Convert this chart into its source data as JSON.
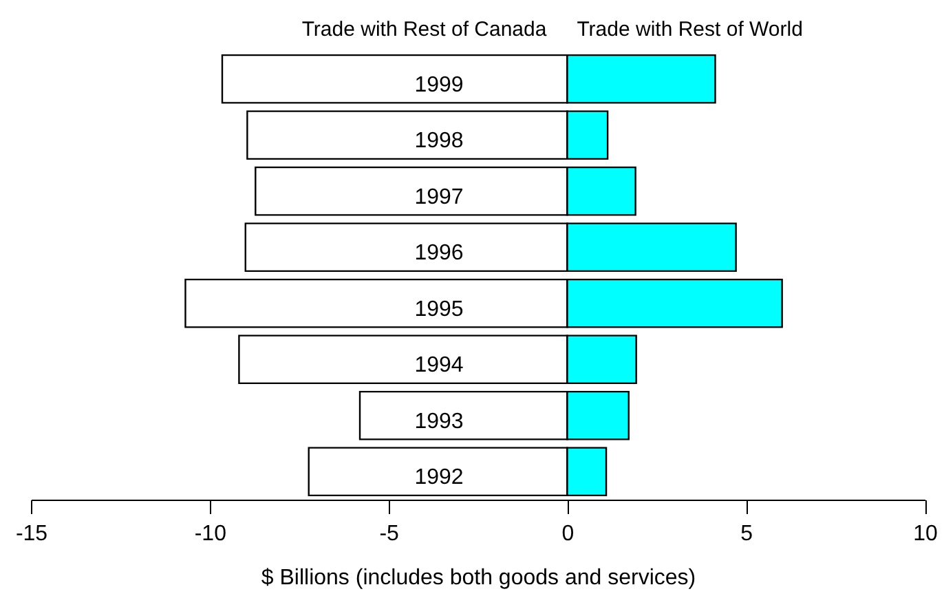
{
  "chart_data": {
    "type": "bar",
    "orientation": "horizontal",
    "stacked": true,
    "categories": [
      "1999",
      "1998",
      "1997",
      "1996",
      "1995",
      "1994",
      "1993",
      "1992"
    ],
    "series": [
      {
        "name": "Trade with Rest of Canada",
        "color": "#ffffff",
        "values": [
          -9.65,
          -8.95,
          -8.72,
          -9.0,
          -10.68,
          -9.18,
          -5.8,
          -7.23
        ]
      },
      {
        "name": "Trade with Rest of World",
        "color": "#00ffff",
        "values": [
          4.14,
          1.13,
          1.91,
          4.72,
          6.01,
          1.93,
          1.72,
          1.09
        ]
      }
    ],
    "xlabel": "$ Billions (includes both goods and services)",
    "xlim": [
      -15,
      10
    ],
    "xticks": [
      -15,
      -10,
      -5,
      0,
      5,
      10
    ],
    "grid": false
  }
}
